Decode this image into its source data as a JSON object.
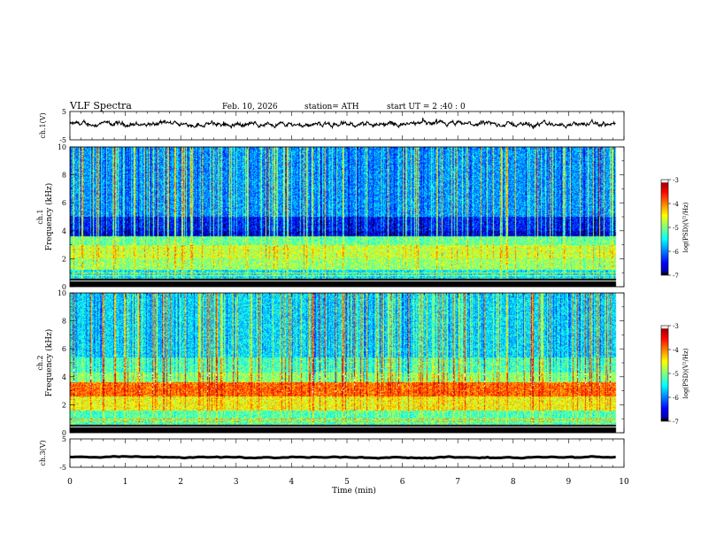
{
  "header": {
    "title": "VLF  Spectra",
    "date": "Feb. 10, 2026",
    "station": "station= ATH",
    "start_ut": "start  UT  =   2  :40 : 0"
  },
  "chart_data": [
    {
      "type": "line",
      "name": "ch1-waveform",
      "ylabel": "ch.1(V)",
      "ylim": [
        -5,
        5
      ],
      "yticks": [
        "5",
        "-5"
      ],
      "xlim": [
        0,
        10
      ],
      "baseline_v": 0.5,
      "noise_amplitude_v": 1.0
    },
    {
      "type": "heatmap",
      "name": "ch1-spectrogram",
      "ylabel_channel": "ch.1",
      "ylabel": "Frequency  (kHz)",
      "ylim": [
        0,
        10
      ],
      "yticks": [
        "0",
        "2",
        "4",
        "6",
        "8",
        "10"
      ],
      "xlim": [
        0,
        10
      ],
      "data_end_min": 9.85,
      "colorbar": {
        "label": "log(PSD)(V²/Hz)",
        "range": [
          -7,
          -3
        ],
        "ticks": [
          "-3",
          "-4",
          "-5",
          "-6",
          "-7"
        ]
      },
      "bands_khz": [
        {
          "from": 0,
          "to": 0.6,
          "level": -7
        },
        {
          "from": 0.6,
          "to": 1.2,
          "level": -5.6
        },
        {
          "from": 1.2,
          "to": 2.0,
          "level": -4.9
        },
        {
          "from": 2.0,
          "to": 3.0,
          "level": -4.7
        },
        {
          "from": 3.0,
          "to": 3.6,
          "level": -5.1
        },
        {
          "from": 3.6,
          "to": 4.0,
          "level": -6.6
        },
        {
          "from": 4.0,
          "to": 5.0,
          "level": -6.4
        },
        {
          "from": 5.0,
          "to": 10.0,
          "level": -5.9
        }
      ]
    },
    {
      "type": "heatmap",
      "name": "ch2-spectrogram",
      "ylabel_channel": "ch.2",
      "ylabel": "Frequency  (kHz)",
      "ylim": [
        0,
        10
      ],
      "yticks": [
        "0",
        "2",
        "4",
        "6",
        "8",
        "10"
      ],
      "xlim": [
        0,
        10
      ],
      "data_end_min": 9.85,
      "colorbar": {
        "label": "log(PSD)(V²/Hz)",
        "range": [
          -7,
          -3
        ],
        "ticks": [
          "-3",
          "-4",
          "-5",
          "-6",
          "-7"
        ]
      },
      "bands_khz": [
        {
          "from": 0,
          "to": 0.6,
          "level": -7
        },
        {
          "from": 0.6,
          "to": 1.6,
          "level": -5.2
        },
        {
          "from": 1.6,
          "to": 2.6,
          "level": -4.5
        },
        {
          "from": 2.6,
          "to": 3.6,
          "level": -3.9
        },
        {
          "from": 3.6,
          "to": 4.3,
          "level": -4.9
        },
        {
          "from": 4.3,
          "to": 5.4,
          "level": -5.2
        },
        {
          "from": 5.4,
          "to": 10.0,
          "level": -5.6
        }
      ]
    },
    {
      "type": "line",
      "name": "ch3-waveform",
      "ylabel": "ch.3(V)",
      "ylim": [
        -5,
        5
      ],
      "yticks": [
        "5",
        "-5"
      ],
      "xlim": [
        0,
        10
      ],
      "baseline_v": -1.5,
      "noise_amplitude_v": 0.3
    }
  ],
  "x_axis": {
    "label": "Time  (min)",
    "ticks": [
      "0",
      "1",
      "2",
      "3",
      "4",
      "5",
      "6",
      "7",
      "8",
      "9",
      "10"
    ]
  }
}
